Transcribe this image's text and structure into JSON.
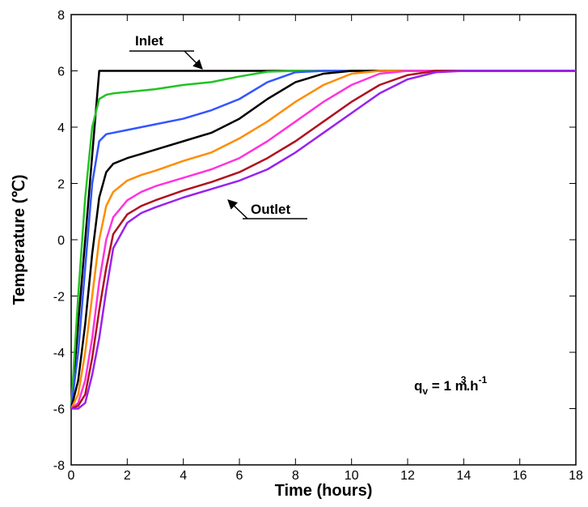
{
  "chart_data": {
    "type": "line",
    "xlabel": "Time (hours)",
    "ylabel": "Temperature (℃)",
    "annotations": [
      "Inlet",
      "Outlet"
    ],
    "flow_rate": [
      "q",
      "v",
      " = 1 m",
      "3",
      ".h",
      "-1"
    ],
    "xlim": [
      0,
      18
    ],
    "xticks": [
      0,
      2,
      4,
      6,
      8,
      10,
      12,
      14,
      16,
      18
    ],
    "ylim": [
      -8,
      8
    ],
    "yticks": [
      -8,
      -6,
      -4,
      -2,
      0,
      2,
      4,
      6,
      8
    ],
    "x": [
      0,
      0.25,
      0.5,
      0.75,
      1,
      1.25,
      1.5,
      2,
      2.5,
      3,
      4,
      5,
      6,
      7,
      8,
      9,
      10,
      11,
      12,
      13,
      14,
      16,
      18
    ],
    "series": [
      {
        "color": "#000000",
        "values": [
          -6,
          -3,
          0,
          3,
          6,
          6,
          6,
          6,
          6,
          6,
          6,
          6,
          6,
          6,
          6,
          6,
          6,
          6,
          6,
          6,
          6,
          6,
          6
        ]
      },
      {
        "color": "#22c322",
        "values": [
          -6,
          -2,
          1.5,
          4,
          5,
          5.15,
          5.2,
          5.25,
          5.3,
          5.35,
          5.5,
          5.6,
          5.8,
          5.97,
          6,
          6,
          6,
          6,
          6,
          6,
          6,
          6,
          6
        ]
      },
      {
        "color": "#3355ff",
        "values": [
          -6,
          -4,
          -1,
          2,
          3.5,
          3.75,
          3.8,
          3.9,
          4,
          4.1,
          4.3,
          4.6,
          5,
          5.6,
          5.95,
          6,
          6,
          6,
          6,
          6,
          6,
          6,
          6
        ]
      },
      {
        "color": "#000000",
        "values": [
          -6,
          -5,
          -3,
          -0.5,
          1.5,
          2.4,
          2.7,
          2.9,
          3.05,
          3.2,
          3.5,
          3.8,
          4.3,
          5,
          5.6,
          5.9,
          6,
          6,
          6,
          6,
          6,
          6,
          6
        ]
      },
      {
        "color": "#ff8c00",
        "values": [
          -6,
          -5.5,
          -4,
          -2,
          0,
          1.2,
          1.7,
          2.1,
          2.3,
          2.45,
          2.8,
          3.1,
          3.6,
          4.2,
          4.9,
          5.5,
          5.9,
          6,
          6,
          6,
          6,
          6,
          6
        ]
      },
      {
        "color": "#ff33dd",
        "values": [
          -6,
          -5.8,
          -5,
          -3.5,
          -1.5,
          0,
          0.8,
          1.4,
          1.7,
          1.9,
          2.2,
          2.5,
          2.9,
          3.5,
          4.2,
          4.9,
          5.5,
          5.9,
          6,
          6,
          6,
          6,
          6
        ]
      },
      {
        "color": "#b01020",
        "values": [
          -6,
          -5.9,
          -5.5,
          -4.2,
          -2.5,
          -1,
          0.2,
          0.9,
          1.2,
          1.4,
          1.75,
          2.05,
          2.4,
          2.9,
          3.5,
          4.2,
          4.9,
          5.5,
          5.85,
          6,
          6,
          6,
          6
        ]
      },
      {
        "color": "#9922ee",
        "values": [
          -6,
          -6,
          -5.8,
          -4.8,
          -3.5,
          -1.8,
          -0.3,
          0.6,
          0.95,
          1.15,
          1.5,
          1.8,
          2.1,
          2.5,
          3.1,
          3.8,
          4.5,
          5.2,
          5.7,
          5.95,
          6,
          6,
          6
        ]
      }
    ]
  }
}
